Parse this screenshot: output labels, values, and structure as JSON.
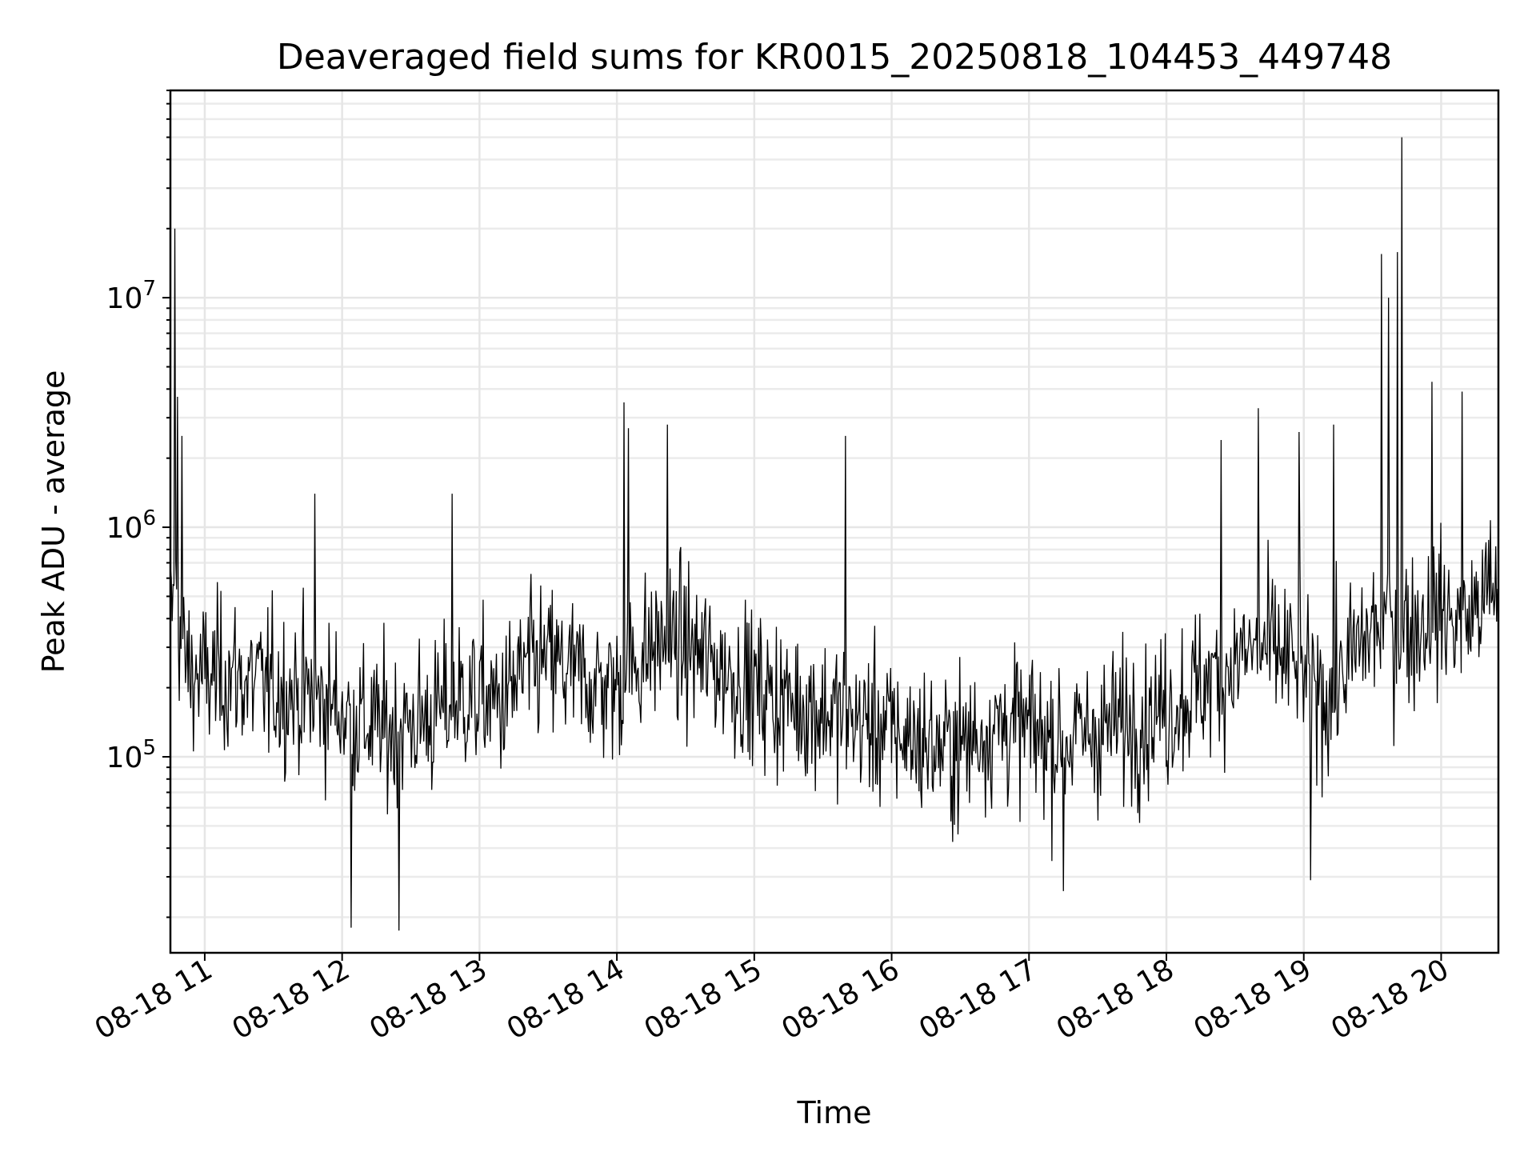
{
  "chart_data": {
    "type": "line",
    "title": "Deaveraged field sums for KR0015_20250818_104453_449748",
    "xlabel": "Time",
    "ylabel": "Peak ADU - average",
    "x_scale": "time",
    "y_scale": "log",
    "xlim": [
      "2025-08-18T10:45:00",
      "2025-08-18T20:25:00"
    ],
    "ylim": [
      14000,
      80000000
    ],
    "x_ticks": [
      {
        "t": "2025-08-18T11:00:00",
        "label": "08-18 11"
      },
      {
        "t": "2025-08-18T12:00:00",
        "label": "08-18 12"
      },
      {
        "t": "2025-08-18T13:00:00",
        "label": "08-18 13"
      },
      {
        "t": "2025-08-18T14:00:00",
        "label": "08-18 14"
      },
      {
        "t": "2025-08-18T15:00:00",
        "label": "08-18 15"
      },
      {
        "t": "2025-08-18T16:00:00",
        "label": "08-18 16"
      },
      {
        "t": "2025-08-18T17:00:00",
        "label": "08-18 17"
      },
      {
        "t": "2025-08-18T18:00:00",
        "label": "08-18 18"
      },
      {
        "t": "2025-08-18T19:00:00",
        "label": "08-18 19"
      },
      {
        "t": "2025-08-18T20:00:00",
        "label": "08-18 20"
      }
    ],
    "y_ticks": [
      {
        "value": 100000,
        "base": "10",
        "exp": "5"
      },
      {
        "value": 1000000,
        "base": "10",
        "exp": "6"
      },
      {
        "value": 10000000,
        "base": "10",
        "exp": "7"
      }
    ],
    "grid": true,
    "line_color": "#000000",
    "series": [
      {
        "x": [
          "2025-08-18T10:45:00",
          "2025-08-18T10:47:00",
          "2025-08-18T10:48:30",
          "2025-08-18T10:50:00",
          "2025-08-18T10:52:00",
          "2025-08-18T10:55:00",
          "2025-08-18T11:00:00",
          "2025-08-18T11:10:00",
          "2025-08-18T11:20:00",
          "2025-08-18T11:30:00",
          "2025-08-18T11:40:00",
          "2025-08-18T11:50:00",
          "2025-08-18T12:00:00",
          "2025-08-18T12:05:00",
          "2025-08-18T12:10:00",
          "2025-08-18T12:20:00",
          "2025-08-18T12:30:00",
          "2025-08-18T12:40:00",
          "2025-08-18T12:50:00",
          "2025-08-18T13:00:00",
          "2025-08-18T13:10:00",
          "2025-08-18T13:20:00",
          "2025-08-18T13:30:00",
          "2025-08-18T13:40:00",
          "2025-08-18T13:50:00",
          "2025-08-18T14:00:00",
          "2025-08-18T14:05:00",
          "2025-08-18T14:10:00",
          "2025-08-18T14:20:00",
          "2025-08-18T14:30:00",
          "2025-08-18T14:40:00",
          "2025-08-18T14:50:00",
          "2025-08-18T15:00:00",
          "2025-08-18T15:10:00",
          "2025-08-18T15:20:00",
          "2025-08-18T15:30:00",
          "2025-08-18T15:40:00",
          "2025-08-18T15:50:00",
          "2025-08-18T16:00:00",
          "2025-08-18T16:10:00",
          "2025-08-18T16:20:00",
          "2025-08-18T16:30:00",
          "2025-08-18T16:40:00",
          "2025-08-18T16:50:00",
          "2025-08-18T17:00:00",
          "2025-08-18T17:10:00",
          "2025-08-18T17:20:00",
          "2025-08-18T17:30:00",
          "2025-08-18T17:40:00",
          "2025-08-18T17:50:00",
          "2025-08-18T18:00:00",
          "2025-08-18T18:10:00",
          "2025-08-18T18:20:00",
          "2025-08-18T18:30:00",
          "2025-08-18T18:40:00",
          "2025-08-18T18:50:00",
          "2025-08-18T19:00:00",
          "2025-08-18T19:10:00",
          "2025-08-18T19:20:00",
          "2025-08-18T19:30:00",
          "2025-08-18T19:40:00",
          "2025-08-18T19:50:00",
          "2025-08-18T20:00:00",
          "2025-08-18T20:10:00",
          "2025-08-18T20:20:00",
          "2025-08-18T20:25:00"
        ],
        "median": [
          400000,
          500000,
          400000,
          300000,
          250000,
          230000,
          220000,
          230000,
          210000,
          200000,
          190000,
          180000,
          160000,
          150000,
          140000,
          130000,
          140000,
          150000,
          180000,
          180000,
          170000,
          240000,
          260000,
          230000,
          210000,
          200000,
          230000,
          270000,
          320000,
          300000,
          260000,
          230000,
          200000,
          180000,
          170000,
          160000,
          150000,
          140000,
          130000,
          120000,
          110000,
          110000,
          130000,
          140000,
          130000,
          120000,
          120000,
          130000,
          140000,
          150000,
          160000,
          190000,
          220000,
          260000,
          300000,
          280000,
          240000,
          180000,
          260000,
          360000,
          360000,
          380000,
          420000,
          380000,
          520000,
          520000
        ],
        "spread": 1.7,
        "n_points": 1500,
        "spikes": [
          {
            "t": "2025-08-18T10:47:00",
            "value": 20000000
          },
          {
            "t": "2025-08-18T10:48:00",
            "value": 3700000
          },
          {
            "t": "2025-08-18T10:50:00",
            "value": 2500000
          },
          {
            "t": "2025-08-18T11:48:00",
            "value": 1400000
          },
          {
            "t": "2025-08-18T12:04:00",
            "value": 18000
          },
          {
            "t": "2025-08-18T12:25:00",
            "value": 17500
          },
          {
            "t": "2025-08-18T12:48:00",
            "value": 1400000
          },
          {
            "t": "2025-08-18T14:03:00",
            "value": 3500000
          },
          {
            "t": "2025-08-18T14:05:00",
            "value": 2700000
          },
          {
            "t": "2025-08-18T14:22:00",
            "value": 2800000
          },
          {
            "t": "2025-08-18T15:40:00",
            "value": 2500000
          },
          {
            "t": "2025-08-18T17:15:00",
            "value": 26000
          },
          {
            "t": "2025-08-18T18:24:00",
            "value": 2400000
          },
          {
            "t": "2025-08-18T18:40:00",
            "value": 3300000
          },
          {
            "t": "2025-08-18T18:58:00",
            "value": 2600000
          },
          {
            "t": "2025-08-18T19:03:00",
            "value": 29000
          },
          {
            "t": "2025-08-18T19:13:00",
            "value": 2800000
          },
          {
            "t": "2025-08-18T19:34:00",
            "value": 15500000
          },
          {
            "t": "2025-08-18T19:37:00",
            "value": 10000000
          },
          {
            "t": "2025-08-18T19:41:00",
            "value": 15800000
          },
          {
            "t": "2025-08-18T19:43:00",
            "value": 50000000
          },
          {
            "t": "2025-08-18T19:56:00",
            "value": 4300000
          },
          {
            "t": "2025-08-18T20:09:00",
            "value": 3900000
          },
          {
            "t": "2025-08-18T20:18:00",
            "value": 800000
          }
        ]
      }
    ]
  }
}
